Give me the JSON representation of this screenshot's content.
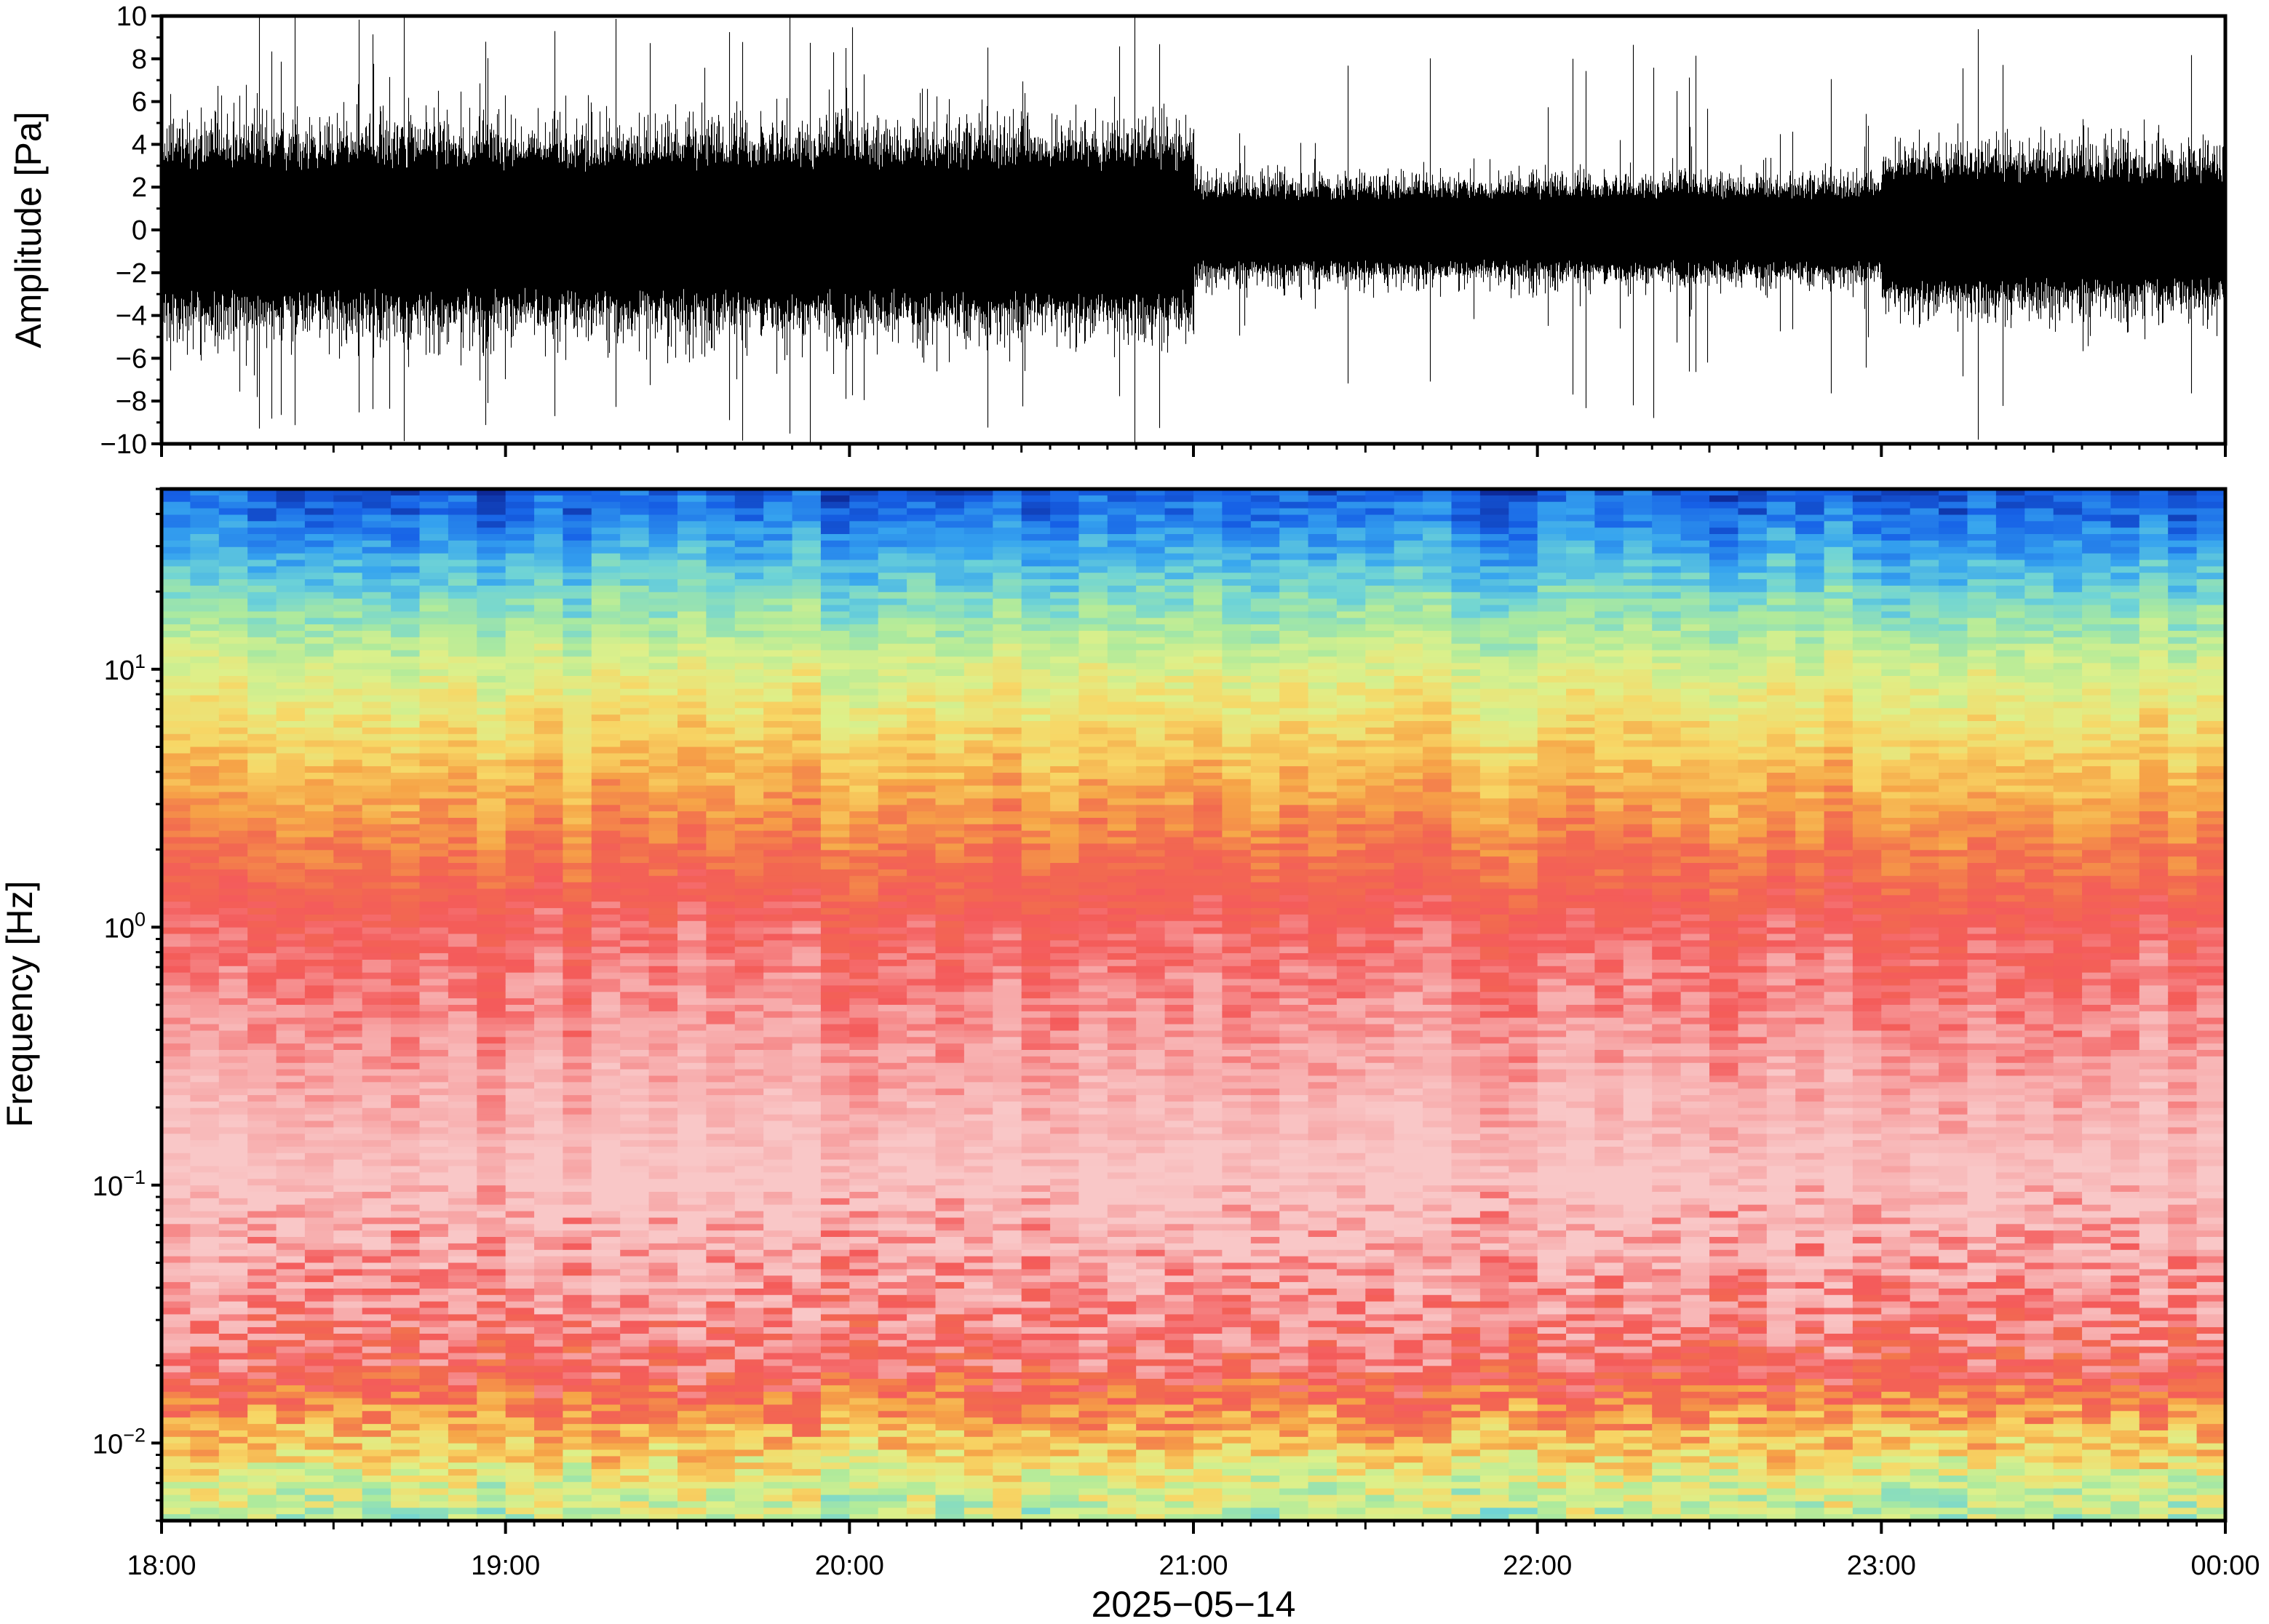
{
  "chart_data": [
    {
      "type": "line",
      "panel": "waveform",
      "ylabel": "Amplitude [Pa]",
      "ylim": [
        -10,
        10
      ],
      "yticks": [
        "10",
        "8",
        "6",
        "4",
        "2",
        "0",
        "−2",
        "−4",
        "−6",
        "−8",
        "−10"
      ],
      "yticks_values": [
        10,
        8,
        6,
        4,
        2,
        0,
        -2,
        -4,
        -6,
        -8,
        -10
      ],
      "x_range": [
        "18:00",
        "00:00"
      ],
      "series": [
        {
          "envelope_segments": [
            {
              "start": "18:00",
              "end": "21:00",
              "typical_peak": 4.5,
              "max_peak": 10
            },
            {
              "start": "21:00",
              "end": "23:00",
              "typical_peak": 2.3,
              "max_peak": 8.7
            },
            {
              "start": "23:00",
              "end": "00:00",
              "typical_peak": 3.6,
              "max_peak": 9
            }
          ]
        }
      ],
      "color": "#000000"
    },
    {
      "type": "heatmap",
      "panel": "spectrogram",
      "ylabel": "Frequency [Hz]",
      "yscale": "log",
      "ylim": [
        0.005,
        50
      ],
      "ytick_labels": [
        {
          "value": 10,
          "base": "10",
          "exp": "1"
        },
        {
          "value": 1,
          "base": "10",
          "exp": "0"
        },
        {
          "value": 0.1,
          "base": "10",
          "exp": "−1"
        },
        {
          "value": 0.01,
          "base": "10",
          "exp": "−2"
        }
      ],
      "colormap": [
        "#0b1f8a",
        "#1660e6",
        "#36a4ef",
        "#6fd4d6",
        "#aeea9c",
        "#ddf08a",
        "#f7d766",
        "#f6a447",
        "#f26a4f",
        "#f45b5b",
        "#f7a8a8",
        "#f9c7c7"
      ],
      "description_bands": [
        {
          "freq_hz": 40,
          "level": "low"
        },
        {
          "freq_hz": 10,
          "level": "mid"
        },
        {
          "freq_hz": 1,
          "level": "high"
        },
        {
          "freq_hz": 0.1,
          "level": "highest"
        },
        {
          "freq_hz": 0.02,
          "level": "high"
        },
        {
          "freq_hz": 0.007,
          "level": "mid"
        }
      ]
    }
  ],
  "x_axis": {
    "tick_labels": [
      "18:00",
      "19:00",
      "20:00",
      "21:00",
      "22:00",
      "23:00",
      "00:00"
    ],
    "xlabel": "2025−05−14"
  }
}
